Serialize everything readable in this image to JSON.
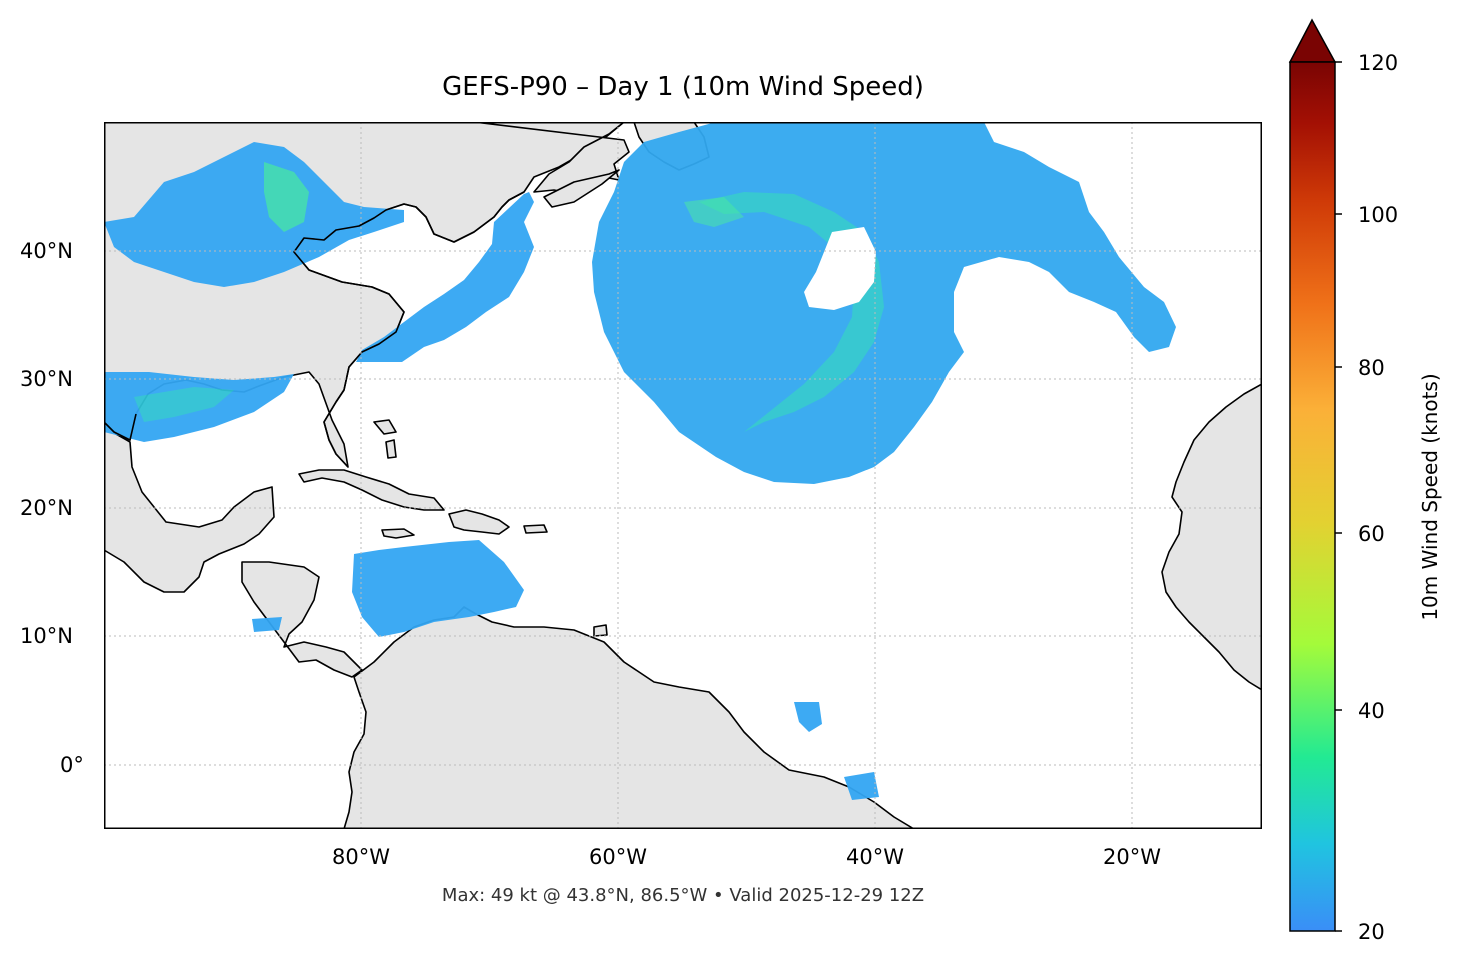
{
  "title": "GEFS-P90 – Day 1 (10m Wind Speed)",
  "footer": "Max: 49 kt @ 43.8°N, 86.5°W • Valid 2025-12-29 12Z",
  "map": {
    "extent": {
      "lon_min": -100,
      "lon_max": -10,
      "lat_min": -5,
      "lat_max": 50
    },
    "x_ticks": [
      "80°W",
      "60°W",
      "40°W",
      "20°W"
    ],
    "y_ticks": [
      "40°N",
      "30°N",
      "20°N",
      "10°N",
      "0°"
    ],
    "land_color": "#e5e5e5",
    "coastline_color": "#000000",
    "gridline_color": "#bbbbbb",
    "gridlines": true
  },
  "colorbar": {
    "label": "10m Wind Speed (knots)",
    "ticks": [
      "120",
      "100",
      "80",
      "60",
      "40",
      "20"
    ],
    "min": 20,
    "max": 120,
    "extend": "max",
    "colormap": "turbo",
    "colors": [
      "#3a8ef7",
      "#20c4e0",
      "#22ea93",
      "#a4fb3a",
      "#e3d131",
      "#fbb038",
      "#f07219",
      "#cf3a07",
      "#a31004",
      "#7a0403"
    ]
  }
}
